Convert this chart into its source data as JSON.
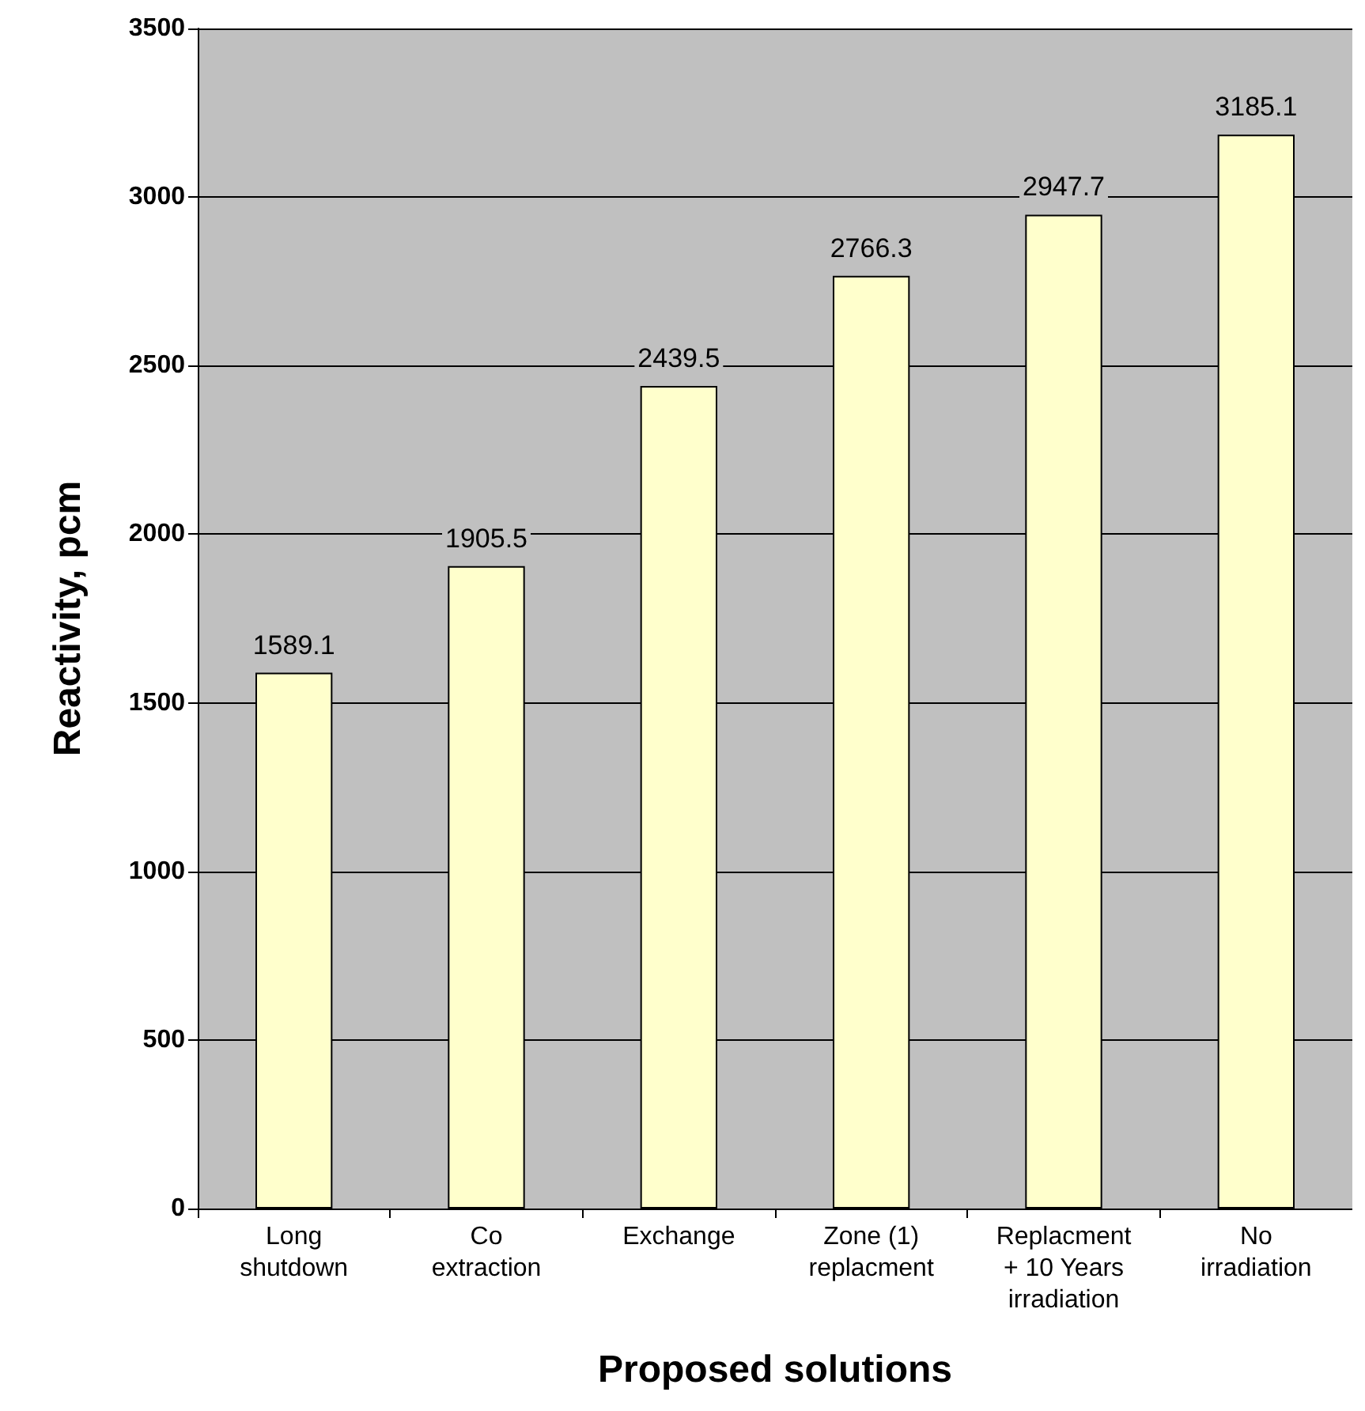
{
  "chart_data": {
    "type": "bar",
    "xlabel": "Proposed solutions",
    "ylabel": "Reactivity, pcm",
    "categories": [
      "Long\nshutdown",
      "Co\nextraction",
      "Exchange",
      "Zone (1)\nreplacment",
      "Replacment\n+ 10 Years\nirradiation",
      "No\nirradiation"
    ],
    "values": [
      1589.1,
      1905.5,
      2439.5,
      2766.3,
      2947.7,
      3185.1
    ],
    "color": "#ffffcc",
    "ylim": [
      0,
      3500
    ],
    "yticks": [
      0,
      500,
      1000,
      1500,
      2000,
      2500,
      3000,
      3500
    ],
    "grid": "y",
    "data_labels": true
  }
}
